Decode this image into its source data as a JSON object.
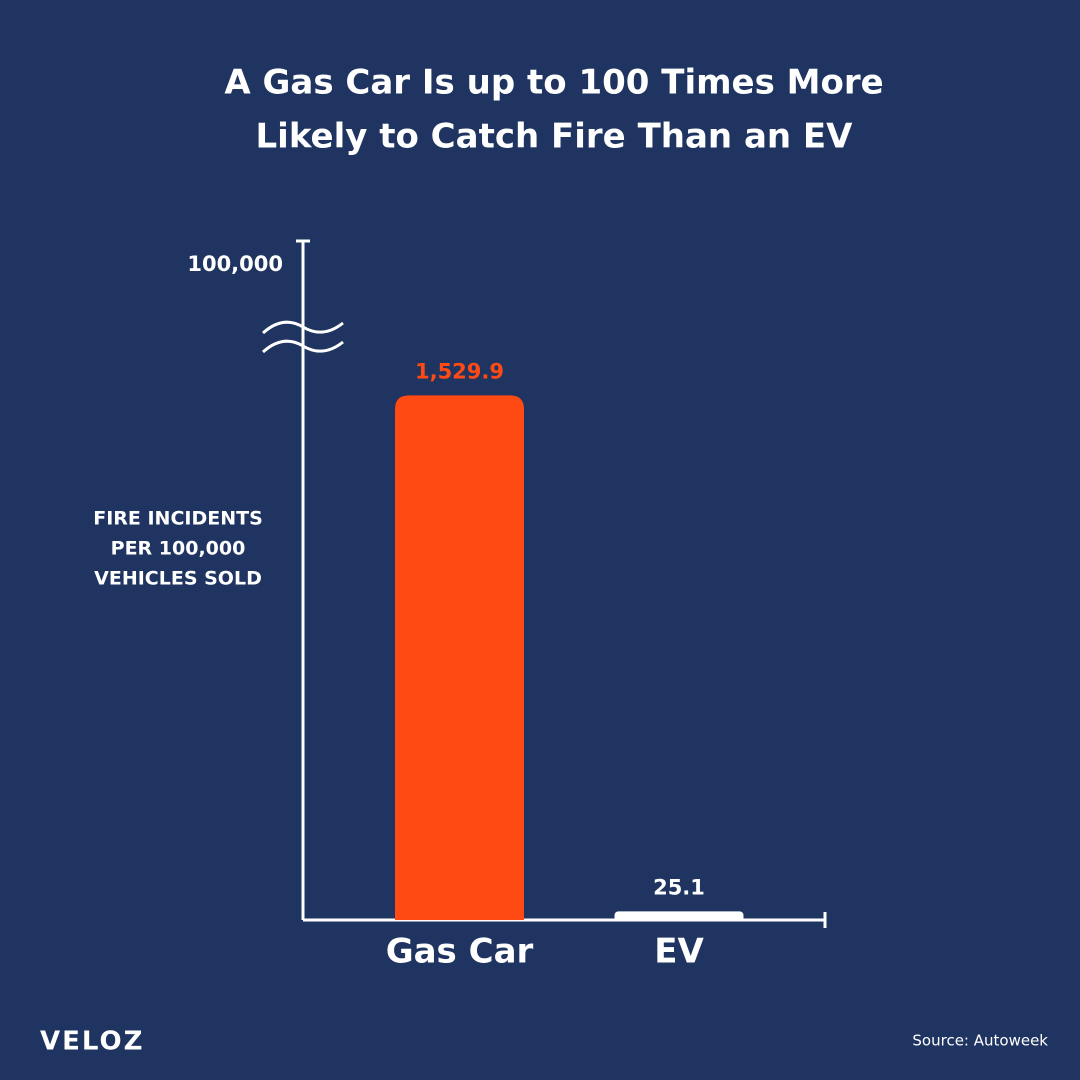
{
  "chart_data": {
    "type": "bar",
    "title": [
      "A Gas Car Is up to 100 Times More",
      "Likely to Catch Fire Than an EV"
    ],
    "y_label": [
      "FIRE INCIDENTS",
      "PER 100,000",
      "VEHICLES SOLD"
    ],
    "categories": [
      "Gas Car",
      "EV"
    ],
    "values": [
      1529.9,
      25.1
    ],
    "value_labels": [
      "1,529.9",
      "25.1"
    ],
    "colors": [
      "#ff4a14",
      "#ffffff"
    ],
    "value_label_colors": [
      "#ff4a14",
      "#ffffff"
    ],
    "ylim": [
      0,
      100000
    ],
    "ybreak": [
      1700,
      100000
    ],
    "yticks": [
      {
        "value": 100000,
        "label": "100,000"
      }
    ],
    "grid": false,
    "source": "Source: Autoweek",
    "logo": "VELOZ"
  }
}
